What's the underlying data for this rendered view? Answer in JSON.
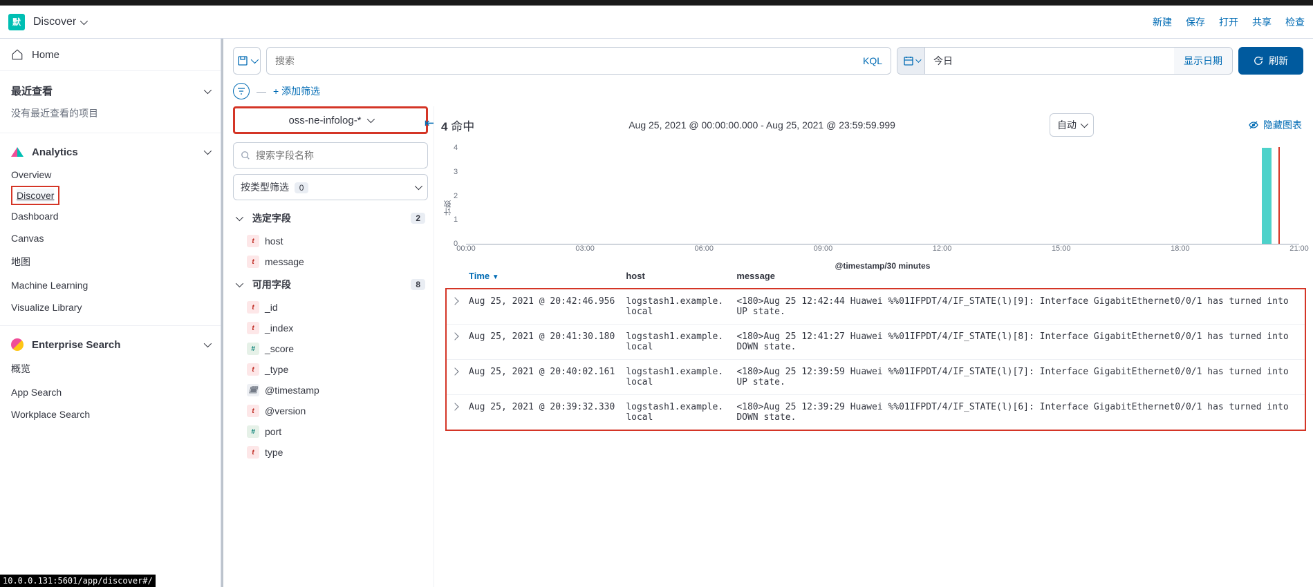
{
  "header": {
    "logo_text": "默",
    "breadcrumb": "Discover",
    "links": {
      "new": "新建",
      "save": "保存",
      "open": "打开",
      "share": "共享",
      "inspect": "检查"
    }
  },
  "sidebar": {
    "home": "Home",
    "recent": {
      "title": "最近查看",
      "empty": "没有最近查看的项目"
    },
    "analytics": {
      "title": "Analytics",
      "items": [
        "Overview",
        "Discover",
        "Dashboard",
        "Canvas",
        "地图",
        "Machine Learning",
        "Visualize Library"
      ]
    },
    "enterprise": {
      "title": "Enterprise Search",
      "items": [
        "概览",
        "App Search",
        "Workplace Search"
      ]
    }
  },
  "querybar": {
    "placeholder": "搜索",
    "kql": "KQL",
    "date_label": "今日",
    "show_dates": "显示日期",
    "refresh": "刷新"
  },
  "filterbar": {
    "add_filter": "+ 添加筛选"
  },
  "fields_panel": {
    "index_pattern": "oss-ne-infolog-*",
    "search_placeholder": "搜索字段名称",
    "type_filter": "按类型筛选",
    "type_count": "0",
    "selected": {
      "label": "选定字段",
      "count": "2",
      "items": [
        {
          "type": "t",
          "name": "host"
        },
        {
          "type": "t",
          "name": "message"
        }
      ]
    },
    "available": {
      "label": "可用字段",
      "count": "8",
      "items": [
        {
          "type": "t",
          "name": "_id"
        },
        {
          "type": "t",
          "name": "_index"
        },
        {
          "type": "#",
          "name": "_score"
        },
        {
          "type": "t",
          "name": "_type"
        },
        {
          "type": "date",
          "name": "@timestamp"
        },
        {
          "type": "t",
          "name": "@version"
        },
        {
          "type": "#",
          "name": "port"
        },
        {
          "type": "t",
          "name": "type"
        }
      ]
    }
  },
  "results": {
    "hit_count": "4",
    "hit_label": "命中",
    "time_range": "Aug 25, 2021 @ 00:00:00.000 - Aug 25, 2021 @ 23:59:59.999",
    "interval": "自动",
    "hide_chart": "隐藏图表",
    "chart": {
      "y_label": "计数",
      "y_ticks": [
        0,
        1,
        2,
        3,
        4
      ],
      "y_max": 4,
      "x_ticks": [
        "00:00",
        "03:00",
        "06:00",
        "09:00",
        "12:00",
        "15:00",
        "18:00",
        "21:00"
      ],
      "x_label": "@timestamp/30 minutes",
      "bar": {
        "position_pct": 95.5,
        "value": 4
      },
      "red_line_pct": 97.5,
      "bar_color": "#4dd2ca"
    },
    "columns": {
      "time": "Time",
      "host": "host",
      "message": "message"
    },
    "rows": [
      {
        "time": "Aug 25, 2021 @ 20:42:46.956",
        "host": "logstash1.example.local",
        "message": "<180>Aug 25 12:42:44 Huawei %%01IFPDT/4/IF_STATE(l)[9]: Interface GigabitEthernet0/0/1 has turned into UP state."
      },
      {
        "time": "Aug 25, 2021 @ 20:41:30.180",
        "host": "logstash1.example.local",
        "message": "<180>Aug 25 12:41:27 Huawei %%01IFPDT/4/IF_STATE(l)[8]: Interface GigabitEthernet0/0/1 has turned into DOWN state."
      },
      {
        "time": "Aug 25, 2021 @ 20:40:02.161",
        "host": "logstash1.example.local",
        "message": "<180>Aug 25 12:39:59 Huawei %%01IFPDT/4/IF_STATE(l)[7]: Interface GigabitEthernet0/0/1 has turned into UP state."
      },
      {
        "time": "Aug 25, 2021 @ 20:39:32.330",
        "host": "logstash1.example.local",
        "message": "<180>Aug 25 12:39:29 Huawei %%01IFPDT/4/IF_STATE(l)[6]: Interface GigabitEthernet0/0/1 has turned into DOWN state."
      }
    ]
  },
  "status_bar": "10.0.0.131:5601/app/discover#/"
}
